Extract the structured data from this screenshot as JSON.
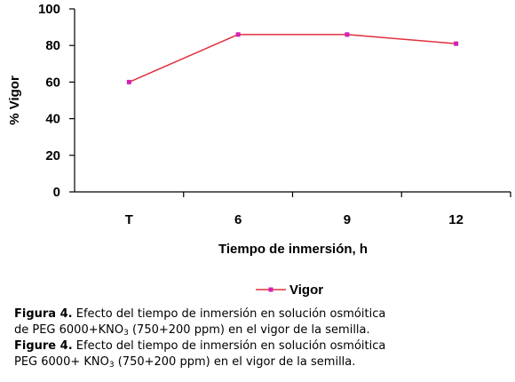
{
  "chart_data": {
    "type": "line",
    "categories": [
      "T",
      "6",
      "9",
      "12"
    ],
    "series": [
      {
        "name": "Vigor",
        "values": [
          60,
          86,
          86,
          81
        ]
      }
    ],
    "xlabel": "Tiempo de inmersión, h",
    "ylabel": "% Vigor",
    "ylim": [
      0,
      100
    ],
    "yticks": [
      0,
      20,
      40,
      60,
      80,
      100
    ],
    "grid": false,
    "legend": "bottom-right"
  },
  "colors": {
    "line": "#E0303C",
    "marker": "#D420B4",
    "axis": "#000000"
  },
  "captions": [
    {
      "label": "Figura 4.",
      "line1": "Efecto del tiempo de inmersión en solución osmóitica",
      "line2_pre": "de PEG 6000+KNO",
      "line2_sub": "3",
      "line2_post": "(750+200 ppm) en el vigor de la semilla."
    },
    {
      "label": "Figure 4.",
      "line1": "Efecto del tiempo de inmersión en solución osmóitica",
      "line2_pre": "PEG 6000+ KNO",
      "line2_sub": "3",
      "line2_post": "(750+200 ppm) en el vigor de la semilla."
    }
  ]
}
